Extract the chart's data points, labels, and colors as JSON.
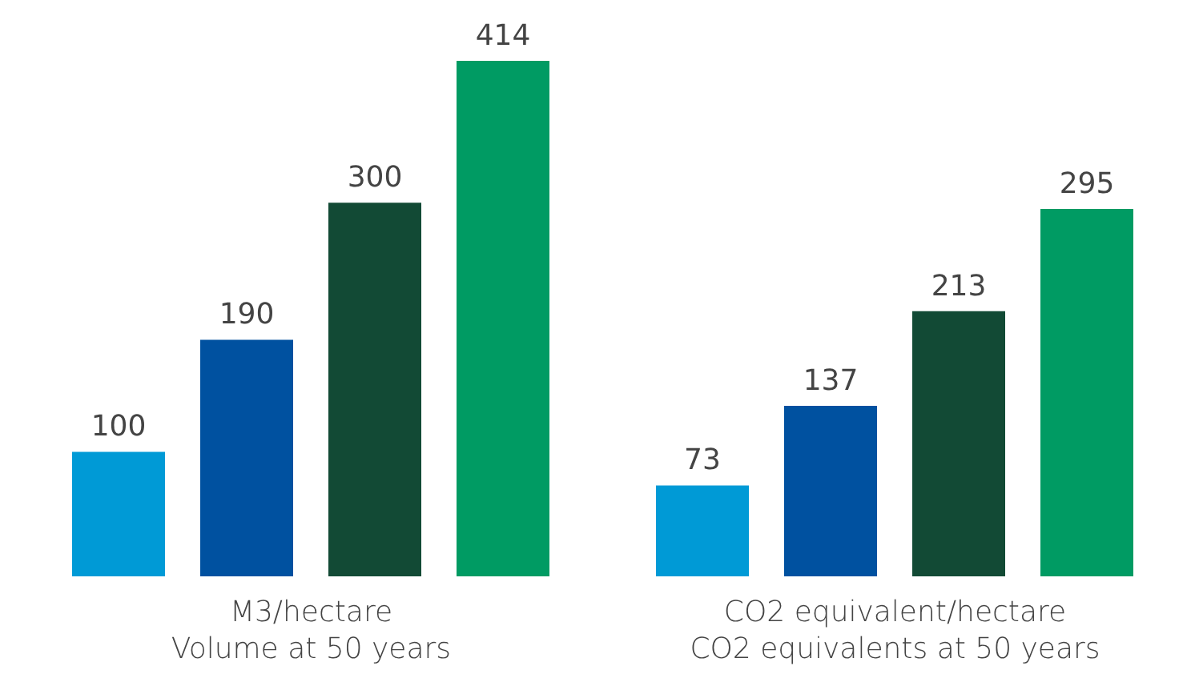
{
  "chart_data": {
    "type": "bar",
    "categories": [
      "M3/hectare\nVolume at 50 years",
      "CO2 equivalent/hectare\nCO2 equivalents at 50 years"
    ],
    "series": [
      {
        "color": "#009ad6",
        "values": [
          100,
          73
        ]
      },
      {
        "color": "#0051a0",
        "values": [
          190,
          137
        ]
      },
      {
        "color": "#124a35",
        "values": [
          300,
          213
        ]
      },
      {
        "color": "#009b63",
        "values": [
          414,
          295
        ]
      }
    ],
    "data_labels": true,
    "grid": false,
    "legend": false
  }
}
